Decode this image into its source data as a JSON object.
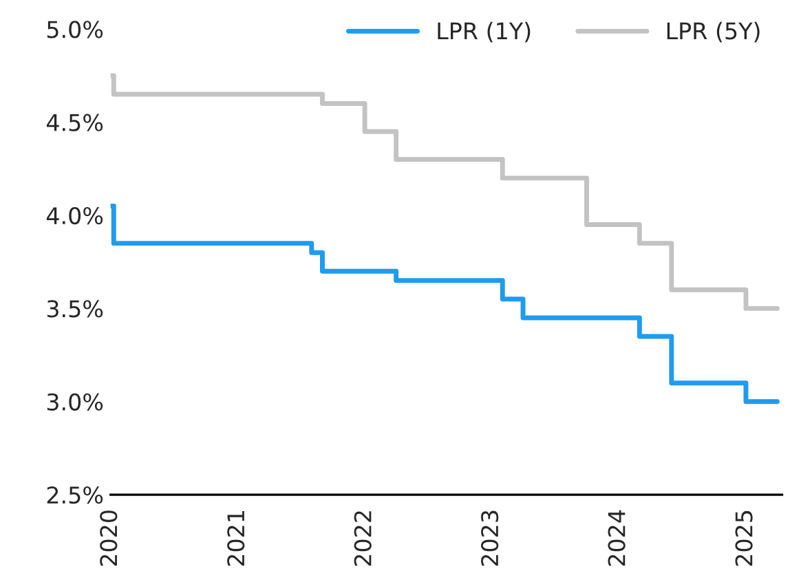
{
  "chart_data": {
    "type": "step",
    "series": [
      {
        "name": "LPR (1Y)",
        "color": "#1f9bef",
        "x": [
          "2020-01",
          "2020-01-10",
          "2021-08",
          "2021-09",
          "2022-04",
          "2023-02",
          "2023-04",
          "2024-03",
          "2024-06",
          "2025-01",
          "2025-04"
        ],
        "values": [
          4.05,
          3.85,
          3.8,
          3.7,
          3.65,
          3.55,
          3.45,
          3.35,
          3.1,
          3.0,
          3.0
        ]
      },
      {
        "name": "LPR (5Y)",
        "color": "#c3c3c3",
        "x": [
          "2020-01",
          "2020-01-10",
          "2021-09",
          "2022-01",
          "2022-04",
          "2023-02",
          "2023-10",
          "2024-03",
          "2024-06",
          "2025-01",
          "2025-04"
        ],
        "values": [
          4.75,
          4.65,
          4.6,
          4.45,
          4.3,
          4.2,
          3.95,
          3.85,
          3.6,
          3.5,
          3.5
        ]
      }
    ],
    "xlim": [
      "2020-01",
      "2025-04-15"
    ],
    "xticks": [
      {
        "value": "2020-01",
        "label": "2020"
      },
      {
        "value": "2021-01",
        "label": "2021"
      },
      {
        "value": "2022-01",
        "label": "2022"
      },
      {
        "value": "2023-01",
        "label": "2023"
      },
      {
        "value": "2024-01",
        "label": "2024"
      },
      {
        "value": "2025-01",
        "label": "2025"
      }
    ],
    "ylim": [
      2.5,
      5.0
    ],
    "yticks": [
      {
        "value": 2.5,
        "label": "2.5%"
      },
      {
        "value": 3.0,
        "label": "3.0%"
      },
      {
        "value": 3.5,
        "label": "3.5%"
      },
      {
        "value": 4.0,
        "label": "4.0%"
      },
      {
        "value": 4.5,
        "label": "4.5%"
      },
      {
        "value": 5.0,
        "label": "5.0%"
      }
    ],
    "grid": false,
    "legend": "top right",
    "line_style": "solid",
    "marker": "none"
  }
}
